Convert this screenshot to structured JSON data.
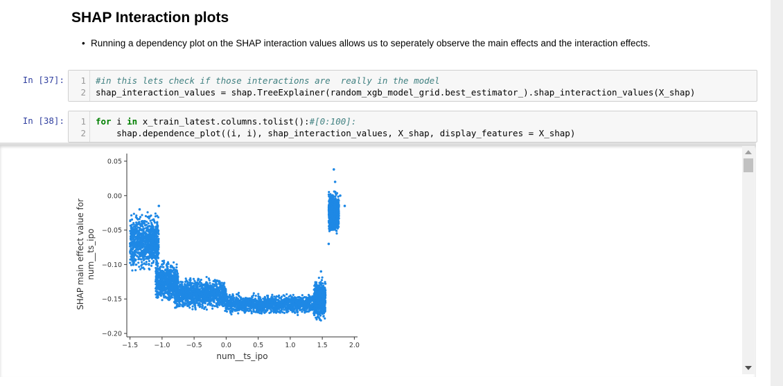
{
  "markdown": {
    "title": "SHAP Interaction plots",
    "bullet": "Running a dependency plot on the SHAP interaction values allows us to seperately observe the main effects and the interaction effects."
  },
  "cells": [
    {
      "prompt": "In [37]:",
      "lines": [
        {
          "n": "1",
          "comment": "#in this lets check if those interactions are  really in the model"
        },
        {
          "n": "2",
          "code": "shap_interaction_values = shap.TreeExplainer(random_xgb_model_grid.best_estimator_).shap_interaction_values(X_shap)"
        }
      ]
    },
    {
      "prompt": "In [38]:",
      "lines": [
        {
          "n": "1",
          "kw_for": "for",
          "mid": " i ",
          "kw_in": "in",
          "code": " x_train_latest.columns.tolist():",
          "comment": "#[0:100]:"
        },
        {
          "n": "2",
          "code": "    shap.dependence_plot((i, i), shap_interaction_values, X_shap, display_features = X_shap)"
        }
      ]
    }
  ],
  "chart_data": {
    "type": "scatter",
    "xlabel": "num__ts_ipo",
    "ylabel": "SHAP main effect value for\nnum__ts_ipo",
    "xlim": [
      -1.55,
      2.05
    ],
    "ylim": [
      -0.205,
      0.055
    ],
    "x_ticks": [
      "-1.5",
      "-1.0",
      "-0.5",
      "0.0",
      "0.5",
      "1.0",
      "1.5",
      "2.0"
    ],
    "y_ticks": [
      "0.05",
      "0.00",
      "-0.05",
      "-0.10",
      "-0.15",
      "-0.20"
    ],
    "color": "#1e88e5",
    "points": [
      [
        -1.35,
        -0.02
      ],
      [
        -1.05,
        -0.015
      ],
      [
        -1.28,
        -0.04
      ],
      [
        -1.2,
        -0.05
      ],
      [
        -1.4,
        -0.07
      ],
      [
        -1.3,
        -0.085
      ],
      [
        -1.15,
        -0.09
      ],
      [
        -1.0,
        -0.1
      ],
      [
        -0.9,
        -0.12
      ],
      [
        -0.8,
        -0.115
      ],
      [
        -0.7,
        -0.13
      ],
      [
        -0.6,
        -0.14
      ],
      [
        -0.45,
        -0.145
      ],
      [
        -0.3,
        -0.15
      ],
      [
        -0.1,
        -0.155
      ],
      [
        0.1,
        -0.155
      ],
      [
        0.3,
        -0.16
      ],
      [
        0.5,
        -0.16
      ],
      [
        0.7,
        -0.158
      ],
      [
        0.9,
        -0.16
      ],
      [
        1.1,
        -0.162
      ],
      [
        1.25,
        -0.163
      ],
      [
        1.4,
        -0.16
      ],
      [
        1.45,
        -0.14
      ],
      [
        1.48,
        -0.11
      ],
      [
        1.5,
        -0.17
      ],
      [
        1.52,
        -0.15
      ],
      [
        1.6,
        -0.07
      ],
      [
        1.62,
        -0.03
      ],
      [
        1.65,
        0.0
      ],
      [
        1.7,
        0.02
      ],
      [
        1.68,
        0.038
      ],
      [
        1.78,
        0.0
      ],
      [
        1.85,
        -0.015
      ]
    ],
    "clusters": [
      {
        "x": [
          -1.5,
          -1.05
        ],
        "y": [
          -0.115,
          -0.02
        ],
        "n": 900
      },
      {
        "x": [
          -1.1,
          -0.75
        ],
        "y": [
          -0.16,
          -0.09
        ],
        "n": 700
      },
      {
        "x": [
          -0.8,
          0.0
        ],
        "y": [
          -0.17,
          -0.115
        ],
        "n": 1100
      },
      {
        "x": [
          0.0,
          1.4
        ],
        "y": [
          -0.175,
          -0.14
        ],
        "n": 1300
      },
      {
        "x": [
          1.37,
          1.55
        ],
        "y": [
          -0.185,
          -0.115
        ],
        "n": 600
      },
      {
        "x": [
          1.6,
          1.76
        ],
        "y": [
          -0.06,
          0.01
        ],
        "n": 700
      }
    ]
  },
  "scrollbar": {
    "up_label": "▲",
    "down_label": "▼"
  }
}
